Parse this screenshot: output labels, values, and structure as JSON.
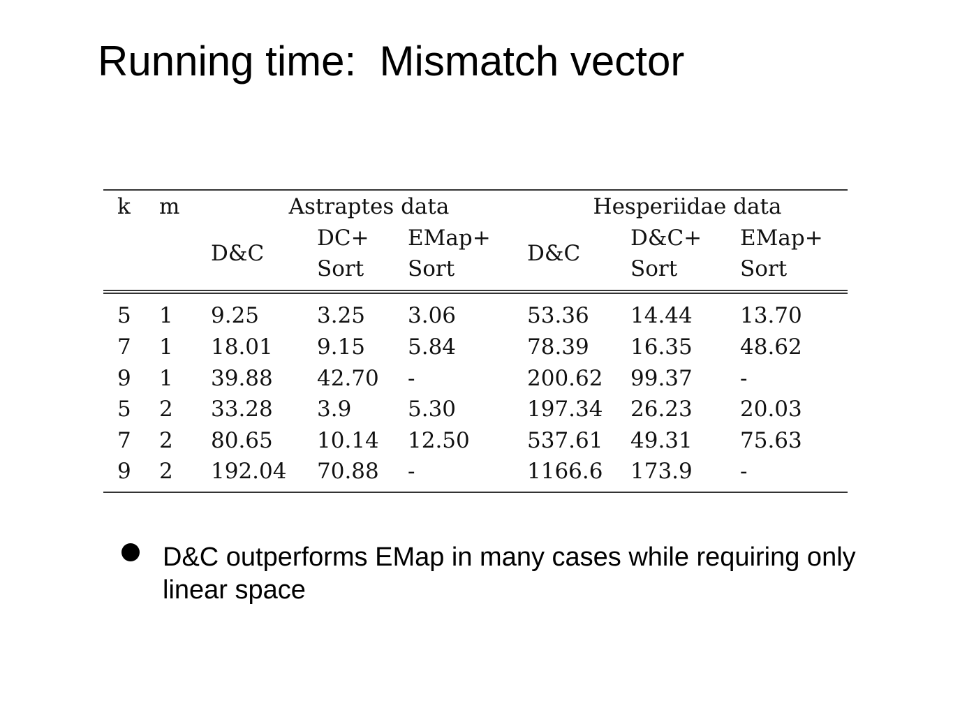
{
  "slide": {
    "title": "Running time:  Mismatch vector"
  },
  "table": {
    "header": {
      "k": "k",
      "m": "m",
      "group_astraptes": "Astraptes data",
      "group_hesperiidae": "Hesperiidae data",
      "astraptes_cols": [
        {
          "line1": "D&C",
          "line2": ""
        },
        {
          "line1": "DC+",
          "line2": "Sort"
        },
        {
          "line1": "EMap+",
          "line2": "Sort"
        }
      ],
      "hesperiidae_cols": [
        {
          "line1": "D&C",
          "line2": ""
        },
        {
          "line1": "D&C+",
          "line2": "Sort"
        },
        {
          "line1": "EMap+",
          "line2": "Sort"
        }
      ]
    },
    "rows": [
      {
        "k": "5",
        "m": "1",
        "a_dc": "9.25",
        "a_dcsort": "3.25",
        "a_emap": "3.06",
        "h_dc": "53.36",
        "h_dcsort": "14.44",
        "h_emap": "13.70"
      },
      {
        "k": "7",
        "m": "1",
        "a_dc": "18.01",
        "a_dcsort": "9.15",
        "a_emap": "5.84",
        "h_dc": "78.39",
        "h_dcsort": "16.35",
        "h_emap": "48.62"
      },
      {
        "k": "9",
        "m": "1",
        "a_dc": "39.88",
        "a_dcsort": "42.70",
        "a_emap": "-",
        "h_dc": "200.62",
        "h_dcsort": "99.37",
        "h_emap": "-"
      },
      {
        "k": "5",
        "m": "2",
        "a_dc": "33.28",
        "a_dcsort": "3.9",
        "a_emap": "5.30",
        "h_dc": "197.34",
        "h_dcsort": "26.23",
        "h_emap": "20.03"
      },
      {
        "k": "7",
        "m": "2",
        "a_dc": "80.65",
        "a_dcsort": "10.14",
        "a_emap": "12.50",
        "h_dc": "537.61",
        "h_dcsort": "49.31",
        "h_emap": "75.63"
      },
      {
        "k": "9",
        "m": "2",
        "a_dc": "192.04",
        "a_dcsort": "70.88",
        "a_emap": "-",
        "h_dc": "1166.6",
        "h_dcsort": "173.9",
        "h_emap": "-"
      }
    ]
  },
  "bullets": [
    {
      "text": "D&C outperforms EMap in many cases while requiring only linear space"
    }
  ]
}
